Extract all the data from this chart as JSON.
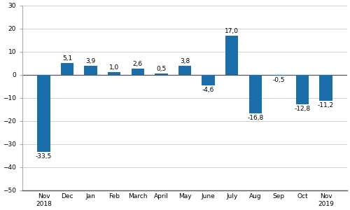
{
  "categories": [
    "Nov\n2018",
    "Dec",
    "Jan",
    "Feb",
    "March",
    "April",
    "May",
    "June",
    "July",
    "Aug",
    "Sep",
    "Oct",
    "Nov\n2019"
  ],
  "values": [
    -33.5,
    5.1,
    3.9,
    1.0,
    2.6,
    0.5,
    3.8,
    -4.6,
    17.0,
    -16.8,
    -0.5,
    -12.8,
    -11.2
  ],
  "bar_color": "#1a6fab",
  "ylim": [
    -50,
    30
  ],
  "yticks": [
    -50,
    -40,
    -30,
    -20,
    -10,
    0,
    10,
    20,
    30
  ],
  "background_color": "#ffffff",
  "grid_color": "#d0d0d0",
  "label_fontsize": 6.5,
  "tick_fontsize": 6.5,
  "bar_width": 0.55
}
